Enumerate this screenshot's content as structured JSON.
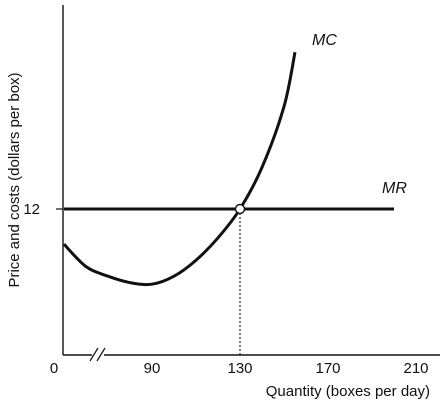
{
  "chart_data": {
    "type": "line",
    "title": "",
    "xlabel": "Quantity (boxes per day)",
    "ylabel": "Price and costs (dollars per box)",
    "x_ticks": [
      {
        "value": 0,
        "label": "0"
      },
      {
        "value": 90,
        "label": "90"
      },
      {
        "value": 130,
        "label": "130"
      },
      {
        "value": 170,
        "label": "170"
      },
      {
        "value": 210,
        "label": "210"
      }
    ],
    "y_ticks": [
      {
        "value": 12,
        "label": "12"
      }
    ],
    "axis_break": "x-axis between 0 and 90",
    "series": [
      {
        "name": "MC",
        "points": [
          [
            50,
            10.9
          ],
          [
            60,
            10.2
          ],
          [
            70,
            9.9
          ],
          [
            80,
            9.7
          ],
          [
            90,
            9.65
          ],
          [
            100,
            9.9
          ],
          [
            110,
            10.4
          ],
          [
            120,
            11.1
          ],
          [
            130,
            12.0
          ],
          [
            140,
            13.3
          ],
          [
            150,
            15.2
          ],
          [
            155,
            16.9
          ]
        ]
      },
      {
        "name": "MR",
        "points": [
          [
            50,
            12.0
          ],
          [
            200,
            12.0
          ]
        ]
      }
    ],
    "intersection": {
      "x": 130,
      "y": 12
    },
    "drop_line": "dotted vertical line from intersection to x-axis at 130"
  }
}
